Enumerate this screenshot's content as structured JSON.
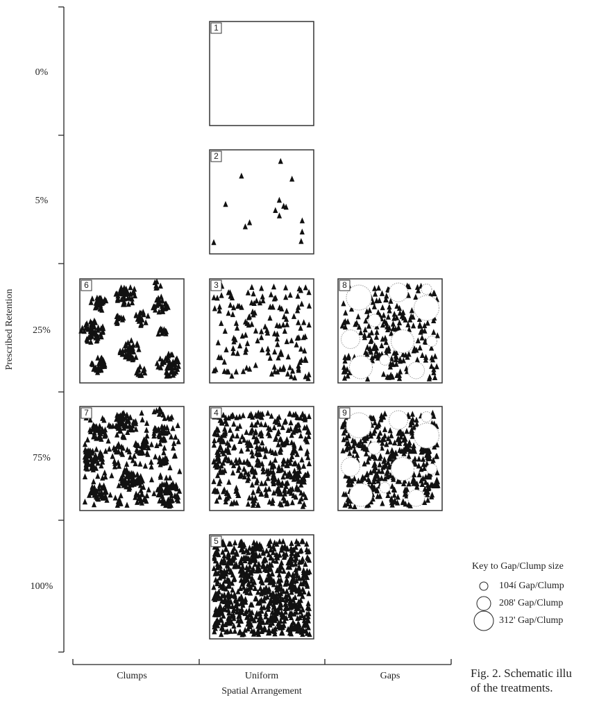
{
  "y_axis": {
    "title": "Prescribed Retention",
    "labels": [
      "0%",
      "5%",
      "25%",
      "75%",
      "100%"
    ]
  },
  "x_axis": {
    "title": "Spatial Arrangement",
    "labels": [
      "Clumps",
      "Uniform",
      "Gaps"
    ]
  },
  "panels": [
    {
      "number": "1"
    },
    {
      "number": "2"
    },
    {
      "number": "3"
    },
    {
      "number": "4"
    },
    {
      "number": "5"
    },
    {
      "number": "6"
    },
    {
      "number": "7"
    },
    {
      "number": "8"
    },
    {
      "number": "9"
    }
  ],
  "key": {
    "title": "Key to Gap/Clump size",
    "items": [
      "104í Gap/Clump",
      "208' Gap/Clump",
      "312' Gap/Clump"
    ]
  },
  "caption": [
    "Fig. 2. Schematic illu",
    "of the treatments."
  ]
}
